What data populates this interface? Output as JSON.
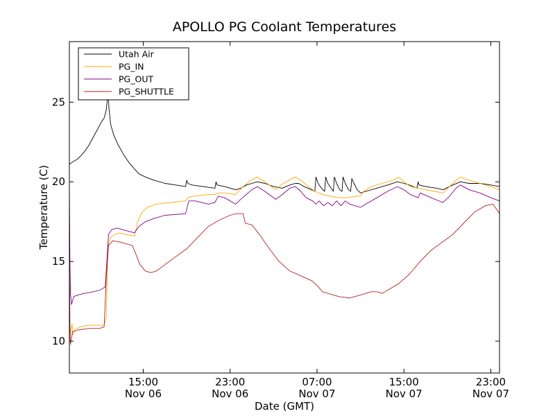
{
  "chart_data": {
    "type": "line",
    "title": "APOLLO PG Coolant Temperatures",
    "xlabel": "Date (GMT)",
    "ylabel": "Temperature (C)",
    "x_unit": "hours since Nov 06 00:00 GMT",
    "xlim": [
      8.2,
      47.8
    ],
    "ylim": [
      8.0,
      28.8
    ],
    "grid": false,
    "legend_position": "top-left",
    "x_ticks": [
      {
        "value": 15,
        "time": "15:00",
        "date": "Nov 06"
      },
      {
        "value": 23,
        "time": "23:00",
        "date": "Nov 06"
      },
      {
        "value": 31,
        "time": "07:00",
        "date": "Nov 07"
      },
      {
        "value": 39,
        "time": "15:00",
        "date": "Nov 07"
      },
      {
        "value": 47,
        "time": "23:00",
        "date": "Nov 07"
      }
    ],
    "y_ticks": [
      {
        "value": 10,
        "label": "10"
      },
      {
        "value": 15,
        "label": "15"
      },
      {
        "value": 20,
        "label": "20"
      },
      {
        "value": 25,
        "label": "25"
      }
    ],
    "series": [
      {
        "name": "Utah Air",
        "color": "#000000",
        "points": [
          [
            8.2,
            21.1
          ],
          [
            8.4,
            21.2
          ],
          [
            8.6,
            21.3
          ],
          [
            8.9,
            21.4
          ],
          [
            9.2,
            21.6
          ],
          [
            9.6,
            21.9
          ],
          [
            10.0,
            22.3
          ],
          [
            10.4,
            22.8
          ],
          [
            10.8,
            23.3
          ],
          [
            11.1,
            23.7
          ],
          [
            11.4,
            24.0
          ],
          [
            11.6,
            24.5
          ],
          [
            11.75,
            25.6
          ],
          [
            11.85,
            24.6
          ],
          [
            12.0,
            23.6
          ],
          [
            12.3,
            22.9
          ],
          [
            12.7,
            22.3
          ],
          [
            13.2,
            21.7
          ],
          [
            13.7,
            21.2
          ],
          [
            14.2,
            20.8
          ],
          [
            14.6,
            20.5
          ],
          [
            15.2,
            20.3
          ],
          [
            16.0,
            20.1
          ],
          [
            17.0,
            19.9
          ],
          [
            18.0,
            19.8
          ],
          [
            18.9,
            19.7
          ],
          [
            19.0,
            20.1
          ],
          [
            19.1,
            19.9
          ],
          [
            19.5,
            19.8
          ],
          [
            20.5,
            19.7
          ],
          [
            21.6,
            19.6
          ],
          [
            21.7,
            20.0
          ],
          [
            21.8,
            19.8
          ],
          [
            22.5,
            19.7
          ],
          [
            23.5,
            19.5
          ],
          [
            24.0,
            19.6
          ],
          [
            24.5,
            19.8
          ],
          [
            25.0,
            19.9
          ],
          [
            25.5,
            20.0
          ],
          [
            26.2,
            19.9
          ],
          [
            27.0,
            19.7
          ],
          [
            27.8,
            19.6
          ],
          [
            28.5,
            19.8
          ],
          [
            29.0,
            19.9
          ],
          [
            29.3,
            19.9
          ],
          [
            29.8,
            19.7
          ],
          [
            30.5,
            19.5
          ],
          [
            30.8,
            19.4
          ],
          [
            30.9,
            20.3
          ],
          [
            31.1,
            19.9
          ],
          [
            31.4,
            19.6
          ],
          [
            31.7,
            19.4
          ],
          [
            31.8,
            20.3
          ],
          [
            32.0,
            19.9
          ],
          [
            32.3,
            19.6
          ],
          [
            32.5,
            19.4
          ],
          [
            32.6,
            20.3
          ],
          [
            32.8,
            19.9
          ],
          [
            33.1,
            19.5
          ],
          [
            33.3,
            19.4
          ],
          [
            33.4,
            20.3
          ],
          [
            33.6,
            19.9
          ],
          [
            33.9,
            19.5
          ],
          [
            34.1,
            19.4
          ],
          [
            34.2,
            20.2
          ],
          [
            34.4,
            19.9
          ],
          [
            34.7,
            19.5
          ],
          [
            35.0,
            19.3
          ],
          [
            35.5,
            19.4
          ],
          [
            36.5,
            19.6
          ],
          [
            37.5,
            19.8
          ],
          [
            38.4,
            20.0
          ],
          [
            39.0,
            19.9
          ],
          [
            39.5,
            19.8
          ],
          [
            40.2,
            19.6
          ],
          [
            40.3,
            20.0
          ],
          [
            40.4,
            19.8
          ],
          [
            41.0,
            19.7
          ],
          [
            42.0,
            19.6
          ],
          [
            42.6,
            19.5
          ],
          [
            43.5,
            19.8
          ],
          [
            44.2,
            20.0
          ],
          [
            45.0,
            19.9
          ],
          [
            46.0,
            19.9
          ],
          [
            47.0,
            19.8
          ],
          [
            47.8,
            19.7
          ]
        ]
      },
      {
        "name": "PG_IN",
        "color": "#ffa500",
        "points": [
          [
            8.2,
            10.0
          ],
          [
            8.3,
            10.5
          ],
          [
            8.45,
            11.1
          ],
          [
            8.5,
            10.4
          ],
          [
            8.7,
            10.7
          ],
          [
            9.2,
            10.9
          ],
          [
            10.0,
            11.0
          ],
          [
            10.8,
            11.0
          ],
          [
            11.4,
            11.0
          ],
          [
            11.6,
            11.5
          ],
          [
            11.75,
            15.9
          ],
          [
            11.95,
            16.5
          ],
          [
            12.4,
            16.7
          ],
          [
            12.8,
            16.8
          ],
          [
            13.3,
            16.7
          ],
          [
            14.2,
            16.6
          ],
          [
            14.5,
            17.5
          ],
          [
            14.9,
            18.1
          ],
          [
            15.4,
            18.4
          ],
          [
            16.2,
            18.6
          ],
          [
            17.5,
            18.7
          ],
          [
            18.9,
            18.8
          ],
          [
            19.1,
            19.0
          ],
          [
            19.6,
            19.1
          ],
          [
            21.0,
            19.2
          ],
          [
            21.6,
            19.2
          ],
          [
            21.9,
            19.3
          ],
          [
            22.5,
            19.3
          ],
          [
            23.5,
            19.2
          ],
          [
            24.2,
            19.7
          ],
          [
            24.9,
            20.1
          ],
          [
            25.5,
            20.3
          ],
          [
            26.2,
            20.0
          ],
          [
            26.8,
            19.7
          ],
          [
            27.2,
            19.5
          ],
          [
            27.7,
            19.8
          ],
          [
            28.4,
            20.1
          ],
          [
            29.0,
            20.3
          ],
          [
            29.5,
            20.1
          ],
          [
            30.2,
            19.7
          ],
          [
            30.8,
            19.4
          ],
          [
            31.5,
            19.2
          ],
          [
            32.2,
            19.1
          ],
          [
            33.0,
            19.0
          ],
          [
            33.8,
            19.0
          ],
          [
            34.6,
            19.1
          ],
          [
            35.0,
            19.1
          ],
          [
            35.3,
            19.4
          ],
          [
            36.0,
            19.7
          ],
          [
            37.0,
            19.9
          ],
          [
            38.0,
            20.1
          ],
          [
            38.5,
            20.3
          ],
          [
            39.0,
            20.0
          ],
          [
            39.6,
            19.7
          ],
          [
            40.3,
            19.6
          ],
          [
            41.0,
            19.5
          ],
          [
            41.8,
            19.4
          ],
          [
            42.6,
            19.3
          ],
          [
            43.2,
            19.7
          ],
          [
            43.8,
            20.1
          ],
          [
            44.2,
            20.3
          ],
          [
            45.0,
            20.1
          ],
          [
            46.0,
            19.9
          ],
          [
            47.0,
            19.7
          ],
          [
            47.8,
            19.5
          ]
        ]
      },
      {
        "name": "PG_OUT",
        "color": "#800080",
        "points": [
          [
            8.2,
            19.7
          ],
          [
            8.25,
            15.0
          ],
          [
            8.3,
            13.0
          ],
          [
            8.4,
            12.3
          ],
          [
            8.6,
            12.8
          ],
          [
            9.0,
            12.9
          ],
          [
            9.6,
            13.0
          ],
          [
            10.4,
            13.1
          ],
          [
            11.0,
            13.2
          ],
          [
            11.5,
            13.4
          ],
          [
            11.65,
            15.0
          ],
          [
            11.8,
            16.7
          ],
          [
            12.1,
            17.0
          ],
          [
            12.6,
            17.1
          ],
          [
            13.1,
            17.0
          ],
          [
            14.2,
            16.8
          ],
          [
            14.6,
            17.2
          ],
          [
            15.2,
            17.5
          ],
          [
            16.0,
            17.7
          ],
          [
            17.0,
            17.9
          ],
          [
            18.9,
            18.0
          ],
          [
            19.2,
            18.8
          ],
          [
            19.8,
            18.8
          ],
          [
            21.0,
            18.6
          ],
          [
            21.6,
            18.7
          ],
          [
            21.9,
            19.1
          ],
          [
            22.5,
            19.0
          ],
          [
            23.5,
            18.6
          ],
          [
            24.3,
            19.1
          ],
          [
            25.0,
            19.5
          ],
          [
            25.5,
            19.7
          ],
          [
            26.2,
            19.4
          ],
          [
            26.8,
            19.1
          ],
          [
            27.2,
            18.9
          ],
          [
            27.8,
            19.2
          ],
          [
            28.5,
            19.6
          ],
          [
            29.0,
            19.7
          ],
          [
            29.5,
            19.4
          ],
          [
            30.0,
            19.0
          ],
          [
            30.6,
            18.8
          ],
          [
            30.9,
            18.6
          ],
          [
            31.2,
            18.8
          ],
          [
            31.6,
            18.5
          ],
          [
            32.0,
            18.7
          ],
          [
            32.4,
            18.5
          ],
          [
            32.8,
            18.8
          ],
          [
            33.2,
            18.5
          ],
          [
            33.6,
            18.8
          ],
          [
            34.0,
            18.6
          ],
          [
            34.5,
            18.5
          ],
          [
            35.0,
            18.4
          ],
          [
            35.5,
            18.6
          ],
          [
            36.5,
            19.0
          ],
          [
            37.5,
            19.4
          ],
          [
            38.4,
            19.7
          ],
          [
            39.0,
            19.5
          ],
          [
            39.6,
            19.2
          ],
          [
            40.3,
            19.0
          ],
          [
            40.5,
            19.3
          ],
          [
            41.5,
            19.0
          ],
          [
            42.6,
            18.7
          ],
          [
            43.2,
            19.1
          ],
          [
            43.8,
            19.6
          ],
          [
            44.2,
            19.8
          ],
          [
            45.0,
            19.5
          ],
          [
            46.0,
            19.3
          ],
          [
            47.0,
            19.0
          ],
          [
            47.8,
            18.8
          ]
        ]
      },
      {
        "name": "PG_SHUTTLE",
        "color": "#b22222",
        "points": [
          [
            8.2,
            15.3
          ],
          [
            8.25,
            11.0
          ],
          [
            8.3,
            9.8
          ],
          [
            8.5,
            10.6
          ],
          [
            9.0,
            10.7
          ],
          [
            10.0,
            10.8
          ],
          [
            11.0,
            10.8
          ],
          [
            11.4,
            10.9
          ],
          [
            11.6,
            14.0
          ],
          [
            11.8,
            16.0
          ],
          [
            12.2,
            16.3
          ],
          [
            13.0,
            16.2
          ],
          [
            13.5,
            16.1
          ],
          [
            14.0,
            16.0
          ],
          [
            14.3,
            15.5
          ],
          [
            14.7,
            14.8
          ],
          [
            15.2,
            14.4
          ],
          [
            15.7,
            14.3
          ],
          [
            16.2,
            14.4
          ],
          [
            17.0,
            14.8
          ],
          [
            18.0,
            15.3
          ],
          [
            19.0,
            15.8
          ],
          [
            20.0,
            16.5
          ],
          [
            21.0,
            17.2
          ],
          [
            22.0,
            17.6
          ],
          [
            23.0,
            17.9
          ],
          [
            23.5,
            18.0
          ],
          [
            24.2,
            18.0
          ],
          [
            24.4,
            17.4
          ],
          [
            25.0,
            17.3
          ],
          [
            25.8,
            16.6
          ],
          [
            26.5,
            15.9
          ],
          [
            27.5,
            15.0
          ],
          [
            28.5,
            14.4
          ],
          [
            29.5,
            14.1
          ],
          [
            30.5,
            13.8
          ],
          [
            31.0,
            13.5
          ],
          [
            31.5,
            13.1
          ],
          [
            32.0,
            13.0
          ],
          [
            32.5,
            12.9
          ],
          [
            33.0,
            12.8
          ],
          [
            33.5,
            12.75
          ],
          [
            34.0,
            12.7
          ],
          [
            34.5,
            12.8
          ],
          [
            35.0,
            12.9
          ],
          [
            35.5,
            13.0
          ],
          [
            36.0,
            13.1
          ],
          [
            36.5,
            13.1
          ],
          [
            37.0,
            13.0
          ],
          [
            37.5,
            13.2
          ],
          [
            38.5,
            13.6
          ],
          [
            39.5,
            14.2
          ],
          [
            40.5,
            15.0
          ],
          [
            41.5,
            15.7
          ],
          [
            42.5,
            16.2
          ],
          [
            43.5,
            16.7
          ],
          [
            44.5,
            17.4
          ],
          [
            45.5,
            18.1
          ],
          [
            46.5,
            18.5
          ],
          [
            47.2,
            18.6
          ],
          [
            47.5,
            18.3
          ],
          [
            47.8,
            18.0
          ]
        ]
      }
    ]
  }
}
